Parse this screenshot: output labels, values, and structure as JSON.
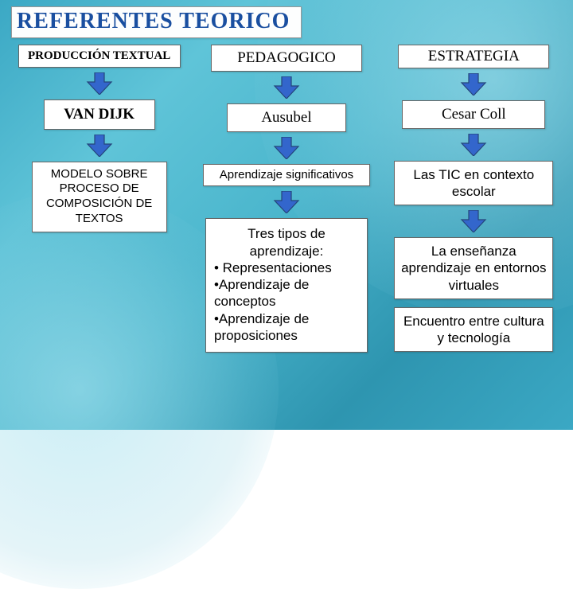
{
  "title": "REFERENTES  TEORICO",
  "arrow": {
    "fill": "#3366cc",
    "stroke": "#24457a",
    "width": 34,
    "height": 28
  },
  "colors": {
    "box_bg": "#ffffff",
    "box_border": "#666666",
    "title_color": "#1a4fa0",
    "title_bg": "#fdfefe"
  },
  "columns": {
    "left": {
      "head": "PRODUCCIÓN TEXTUAL",
      "author": "VAN DIJK",
      "model": "MODELO SOBRE PROCESO DE COMPOSICIÓN DE TEXTOS"
    },
    "mid": {
      "head": "PEDAGOGICO",
      "author": "Ausubel",
      "concept": "Aprendizaje significativos",
      "types_intro": "Tres tipos de aprendizaje:",
      "types": [
        "• Representaciones",
        "•Aprendizaje de conceptos",
        "•Aprendizaje de proposiciones"
      ]
    },
    "right": {
      "head": "ESTRATEGIA",
      "author": "Cesar  Coll",
      "r1": "Las TIC en contexto escolar",
      "r2": "La enseñanza aprendizaje en entornos virtuales",
      "r3": "Encuentro entre cultura y tecnología"
    }
  }
}
